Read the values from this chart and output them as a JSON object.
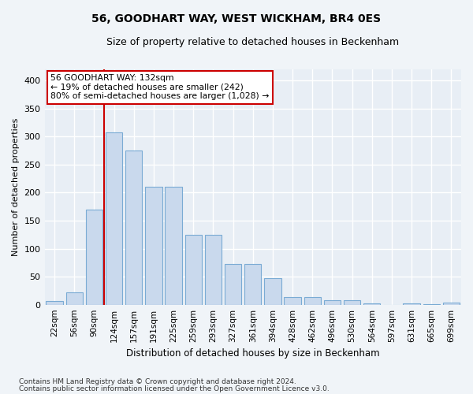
{
  "title": "56, GOODHART WAY, WEST WICKHAM, BR4 0ES",
  "subtitle": "Size of property relative to detached houses in Beckenham",
  "xlabel": "Distribution of detached houses by size in Beckenham",
  "ylabel": "Number of detached properties",
  "bar_color": "#c9d9ed",
  "bar_edge_color": "#7aabd4",
  "background_color": "#e8eef5",
  "grid_color": "#ffffff",
  "fig_background": "#f0f4f8",
  "categories": [
    "22sqm",
    "56sqm",
    "90sqm",
    "124sqm",
    "157sqm",
    "191sqm",
    "225sqm",
    "259sqm",
    "293sqm",
    "327sqm",
    "361sqm",
    "394sqm",
    "428sqm",
    "462sqm",
    "496sqm",
    "530sqm",
    "564sqm",
    "597sqm",
    "631sqm",
    "665sqm",
    "699sqm"
  ],
  "values": [
    7,
    22,
    170,
    308,
    275,
    210,
    210,
    125,
    125,
    73,
    73,
    47,
    13,
    13,
    8,
    8,
    3,
    0,
    3,
    1,
    4
  ],
  "vline_x": 3.0,
  "vline_color": "#cc0000",
  "annotation_text": "56 GOODHART WAY: 132sqm\n← 19% of detached houses are smaller (242)\n80% of semi-detached houses are larger (1,028) →",
  "annotation_box_color": "#ffffff",
  "annotation_box_edge": "#cc0000",
  "ylim": [
    0,
    420
  ],
  "yticks": [
    0,
    50,
    100,
    150,
    200,
    250,
    300,
    350,
    400
  ],
  "footnote1": "Contains HM Land Registry data © Crown copyright and database right 2024.",
  "footnote2": "Contains public sector information licensed under the Open Government Licence v3.0."
}
